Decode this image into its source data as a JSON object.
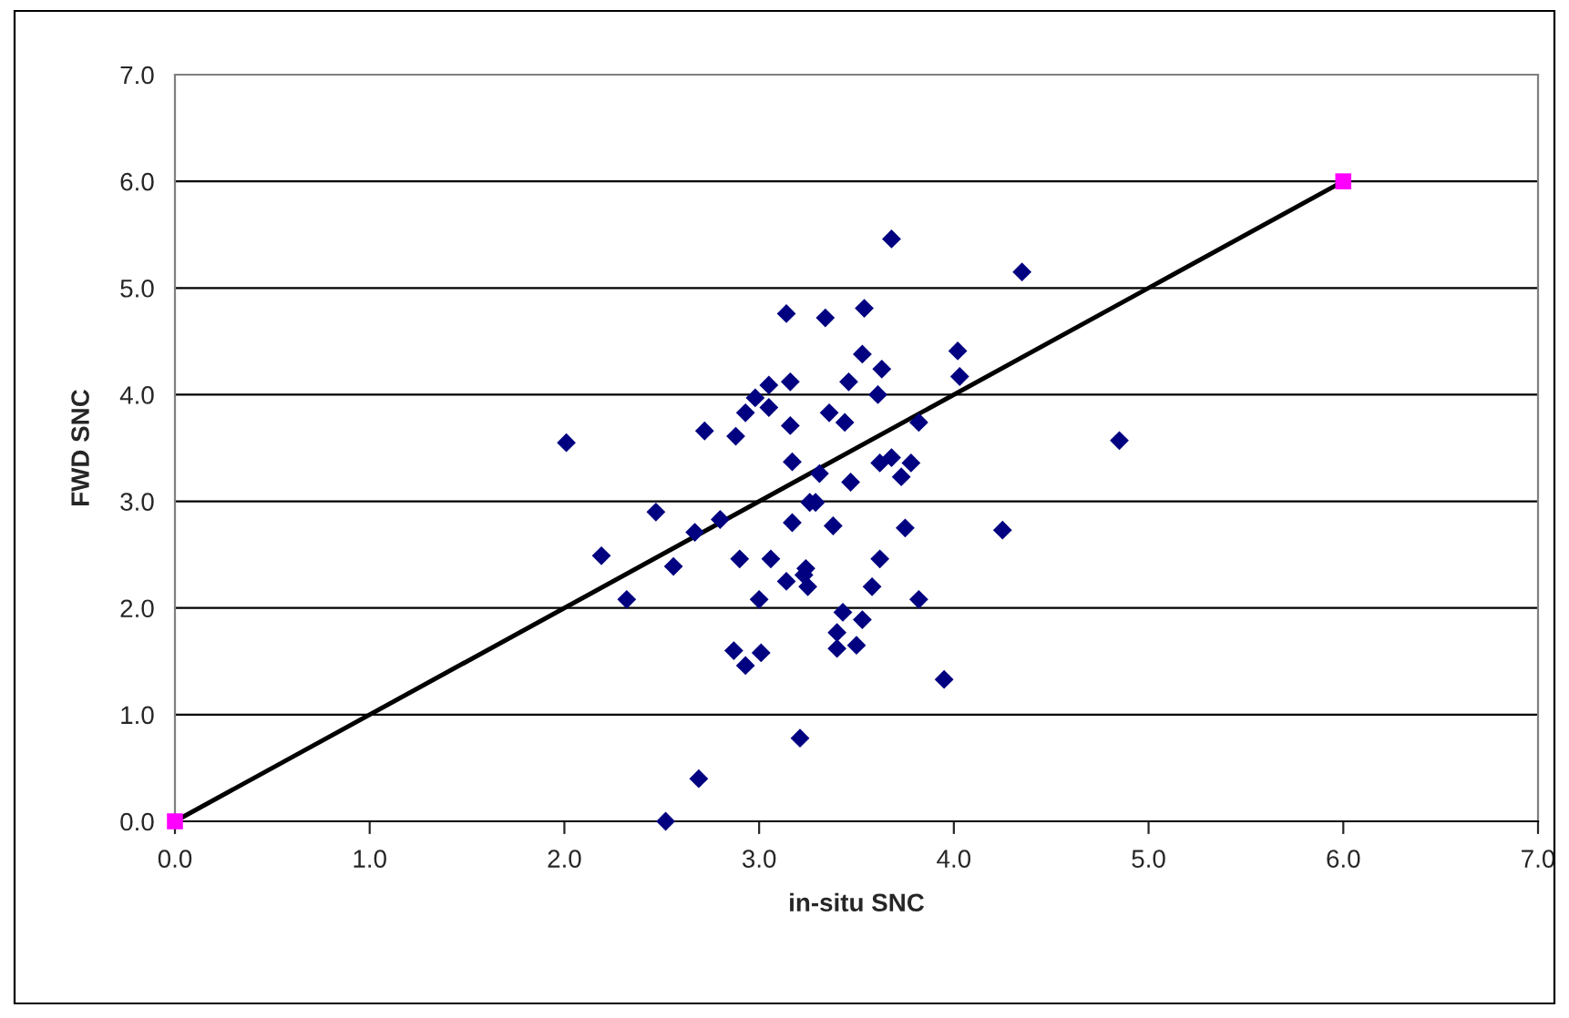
{
  "chart_data": {
    "type": "scatter",
    "xlabel": "in-situ SNC",
    "ylabel": "FWD SNC",
    "xlim": [
      0,
      7
    ],
    "ylim": [
      0,
      7
    ],
    "xticks": [
      {
        "value": 0,
        "label": "0.0"
      },
      {
        "value": 1,
        "label": "1.0"
      },
      {
        "value": 2,
        "label": "2.0"
      },
      {
        "value": 3,
        "label": "3.0"
      },
      {
        "value": 4,
        "label": "4.0"
      },
      {
        "value": 5,
        "label": "5.0"
      },
      {
        "value": 6,
        "label": "6.0"
      },
      {
        "value": 7,
        "label": "7.0"
      }
    ],
    "yticks": [
      {
        "value": 0,
        "label": "0.0"
      },
      {
        "value": 1,
        "label": "1.0"
      },
      {
        "value": 2,
        "label": "2.0"
      },
      {
        "value": 3,
        "label": "3.0"
      },
      {
        "value": 4,
        "label": "4.0"
      },
      {
        "value": 5,
        "label": "5.0"
      },
      {
        "value": 6,
        "label": "6.0"
      },
      {
        "value": 7,
        "label": "7.0"
      }
    ],
    "grid": "y",
    "legend": false,
    "series": [
      {
        "color": "#000080",
        "marker": "diamond",
        "x": [
          2.01,
          2.19,
          2.32,
          2.47,
          2.56,
          2.67,
          2.72,
          2.69,
          2.52,
          2.8,
          2.88,
          2.9,
          2.87,
          2.93,
          2.93,
          2.98,
          3.0,
          3.01,
          3.05,
          3.05,
          3.06,
          3.14,
          3.14,
          3.16,
          3.16,
          3.17,
          3.17,
          3.21,
          3.24,
          3.23,
          3.25,
          3.26,
          3.29,
          3.31,
          3.34,
          3.36,
          3.38,
          3.4,
          3.4,
          3.43,
          3.44,
          3.46,
          3.47,
          3.5,
          3.53,
          3.53,
          3.54,
          3.58,
          3.61,
          3.62,
          3.62,
          3.63,
          3.68,
          3.68,
          3.73,
          3.75,
          3.78,
          3.82,
          3.82,
          3.95,
          4.02,
          4.03,
          4.25,
          4.35,
          4.85
        ],
        "values": [
          3.55,
          2.49,
          2.08,
          2.9,
          2.39,
          2.71,
          3.66,
          0.4,
          0.0,
          2.83,
          3.61,
          2.46,
          1.6,
          1.46,
          3.83,
          3.97,
          2.08,
          1.58,
          4.09,
          3.88,
          2.46,
          4.76,
          2.25,
          4.12,
          3.71,
          3.37,
          2.8,
          0.78,
          2.37,
          2.31,
          2.2,
          2.99,
          2.99,
          3.26,
          4.72,
          3.83,
          2.77,
          1.77,
          1.62,
          1.96,
          3.74,
          4.12,
          3.18,
          1.65,
          1.89,
          4.38,
          4.81,
          2.2,
          4.0,
          3.36,
          2.46,
          4.24,
          5.46,
          3.41,
          3.23,
          2.75,
          3.36,
          3.74,
          2.08,
          1.33,
          4.41,
          4.17,
          2.73,
          5.15,
          3.57
        ]
      },
      {
        "type": "line",
        "color": "#000000",
        "marker": "square",
        "colors": [
          "#ff00ff",
          "#ff00ff"
        ],
        "x": [
          0,
          6
        ],
        "values": [
          0,
          6
        ]
      }
    ]
  }
}
